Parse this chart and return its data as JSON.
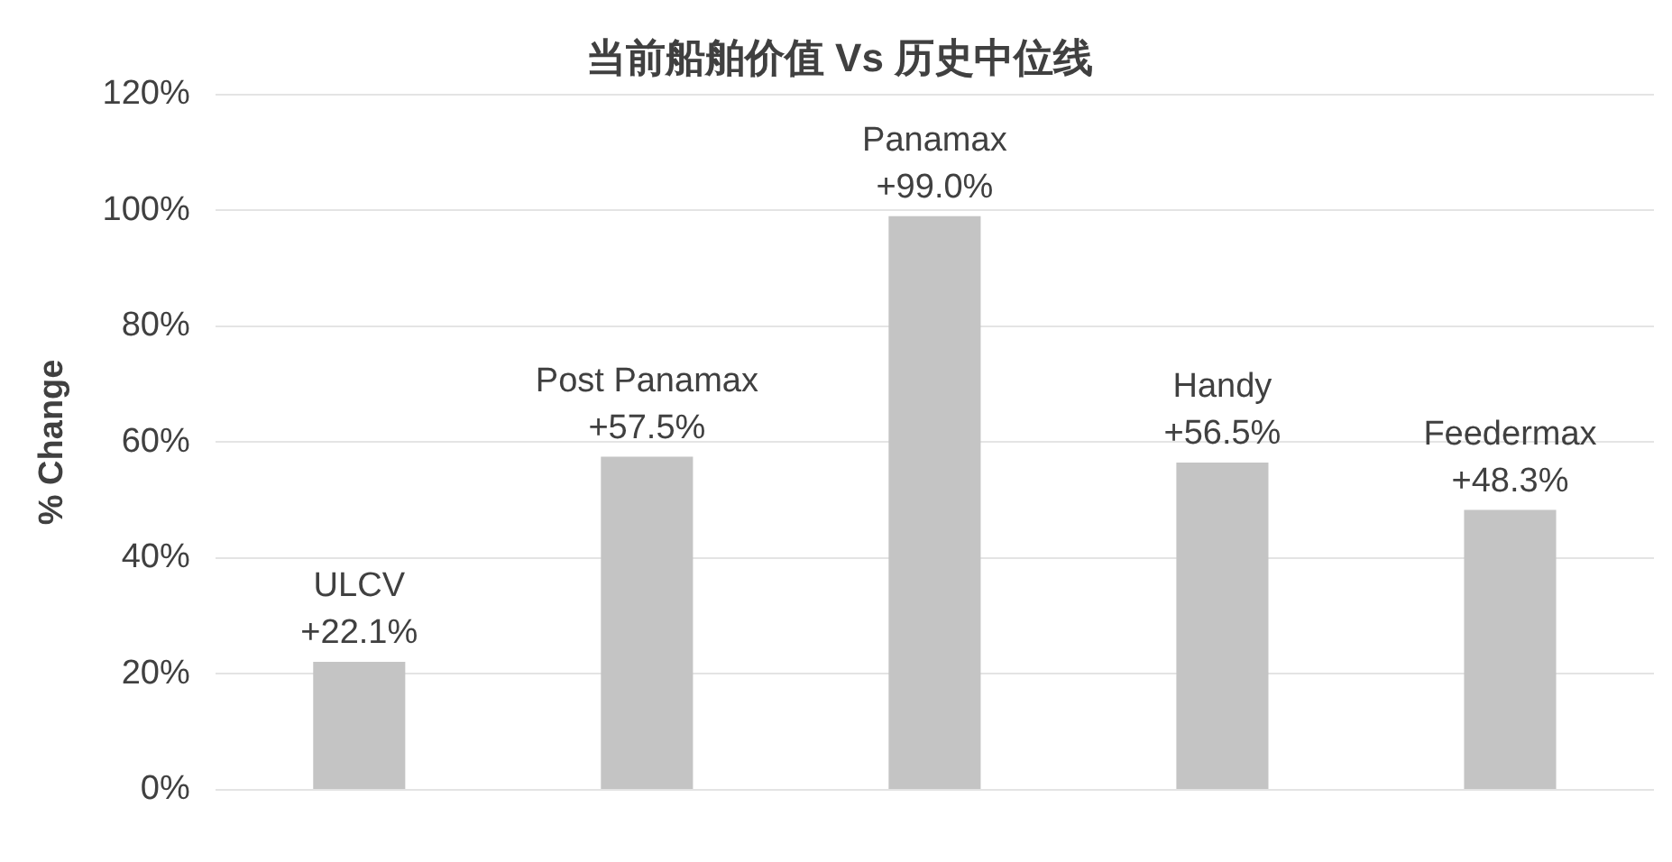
{
  "chart_data": {
    "type": "bar",
    "title": "当前船舶价值 Vs 历史中位线",
    "ylabel": "% Change",
    "categories": [
      "ULCV",
      "Post Panamax",
      "Panamax",
      "Handy",
      "Feedermax"
    ],
    "values": [
      22.1,
      57.5,
      99.0,
      56.5,
      48.3
    ],
    "value_labels": [
      "+22.1%",
      "+57.5%",
      "+99.0%",
      "+56.5%",
      "+48.3%"
    ],
    "color": "#c4c4c4",
    "ylim": [
      0,
      120
    ],
    "yticks": [
      {
        "value": 0,
        "label": "0%"
      },
      {
        "value": 20,
        "label": "20%"
      },
      {
        "value": 40,
        "label": "40%"
      },
      {
        "value": 60,
        "label": "60%"
      },
      {
        "value": 80,
        "label": "80%"
      },
      {
        "value": 100,
        "label": "100%"
      },
      {
        "value": 120,
        "label": "120%"
      }
    ],
    "grid": "y",
    "legend": false
  }
}
